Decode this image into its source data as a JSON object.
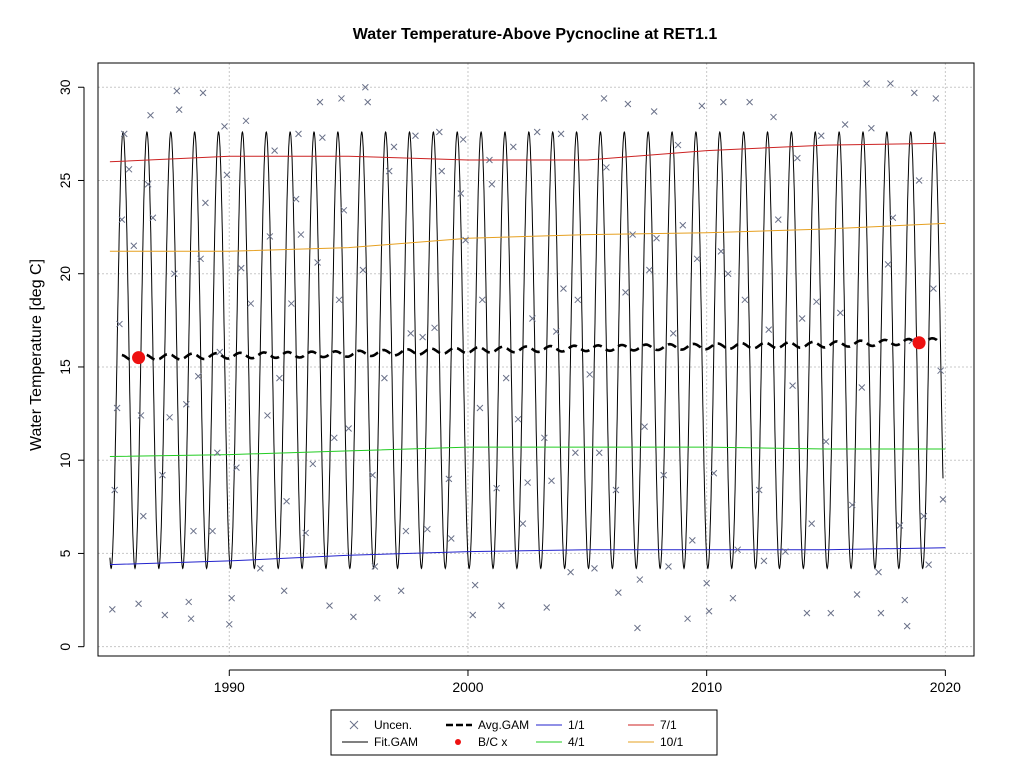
{
  "chart_data": {
    "type": "line",
    "title": "Water Temperature-Above Pycnocline at RET1.1",
    "xlabel": "",
    "ylabel": "Water Temperature [deg C]",
    "xlim": [
      1984.5,
      2021.2
    ],
    "ylim": [
      -0.5,
      31.3
    ],
    "x_ticks": [
      1990,
      2000,
      2010,
      2020
    ],
    "x_tick_labels": [
      "1990",
      "2000",
      "2010",
      "2020"
    ],
    "y_ticks": [
      0,
      5,
      10,
      15,
      20,
      25,
      30
    ],
    "y_tick_labels": [
      "0",
      "5",
      "10",
      "15",
      "20",
      "25",
      "30"
    ],
    "grid": true,
    "legend_position": "bottom-outside",
    "legend": [
      {
        "label": "Uncen.",
        "style": "x-marker",
        "color": "#6a7189"
      },
      {
        "label": "Fit.GAM",
        "style": "line",
        "color": "#000000"
      },
      {
        "label": "Avg.GAM",
        "style": "dashed-thick",
        "color": "#000000"
      },
      {
        "label": "B/C x",
        "style": "dot",
        "color": "#ee1111"
      },
      {
        "label": "1/1",
        "style": "line",
        "color": "#2222cc"
      },
      {
        "label": "4/1",
        "style": "line",
        "color": "#22cc22"
      },
      {
        "label": "7/1",
        "style": "line",
        "color": "#cc2222"
      },
      {
        "label": "10/1",
        "style": "line",
        "color": "#e6a020"
      }
    ],
    "series": [
      {
        "name": "1/1",
        "color": "#2222cc",
        "x": [
          1985,
          1990,
          1995,
          2000,
          2005,
          2010,
          2015,
          2020
        ],
        "values": [
          4.4,
          4.6,
          4.9,
          5.1,
          5.2,
          5.2,
          5.2,
          5.3
        ]
      },
      {
        "name": "4/1",
        "color": "#22cc22",
        "x": [
          1985,
          1990,
          1995,
          2000,
          2005,
          2010,
          2015,
          2020
        ],
        "values": [
          10.2,
          10.3,
          10.5,
          10.7,
          10.7,
          10.7,
          10.6,
          10.6
        ]
      },
      {
        "name": "7/1",
        "color": "#cc2222",
        "x": [
          1985,
          1990,
          1995,
          2000,
          2005,
          2010,
          2015,
          2020
        ],
        "values": [
          26.0,
          26.3,
          26.3,
          26.1,
          26.1,
          26.6,
          26.9,
          27.0
        ]
      },
      {
        "name": "10/1",
        "color": "#e6a020",
        "x": [
          1985,
          1990,
          1995,
          2000,
          2005,
          2010,
          2015,
          2020
        ],
        "values": [
          21.2,
          21.2,
          21.4,
          21.9,
          22.1,
          22.2,
          22.4,
          22.7
        ]
      },
      {
        "name": "Avg.GAM",
        "color": "#000000",
        "x": [
          1985.5,
          1990,
          1995,
          2000,
          2005,
          2010,
          2015,
          2019.8
        ],
        "values": [
          15.5,
          15.6,
          15.7,
          15.9,
          16.0,
          16.1,
          16.2,
          16.4
        ]
      },
      {
        "name": "B/C x",
        "color": "#ee1111",
        "x": [
          1986.2,
          2018.9
        ],
        "values": [
          15.5,
          16.3
        ]
      }
    ],
    "fit_gam": {
      "start": 1985.0,
      "end": 2019.9,
      "min": 4.2,
      "max": 27.6
    },
    "uncensored_points": [
      [
        1985.1,
        2.0
      ],
      [
        1985.2,
        8.4
      ],
      [
        1985.3,
        12.8
      ],
      [
        1985.4,
        17.3
      ],
      [
        1985.5,
        22.9
      ],
      [
        1985.6,
        27.5
      ],
      [
        1985.8,
        25.6
      ],
      [
        1986.0,
        21.5
      ],
      [
        1986.3,
        12.4
      ],
      [
        1986.4,
        7.0
      ],
      [
        1986.2,
        2.3
      ],
      [
        1986.6,
        24.8
      ],
      [
        1986.7,
        28.5
      ],
      [
        1986.8,
        23.0
      ],
      [
        1987.2,
        9.2
      ],
      [
        1987.3,
        1.7
      ],
      [
        1987.5,
        12.3
      ],
      [
        1987.7,
        20.0
      ],
      [
        1987.8,
        29.8
      ],
      [
        1987.9,
        28.8
      ],
      [
        1988.2,
        13.0
      ],
      [
        1988.3,
        2.4
      ],
      [
        1988.4,
        1.5
      ],
      [
        1988.5,
        6.2
      ],
      [
        1988.7,
        14.5
      ],
      [
        1988.8,
        20.8
      ],
      [
        1988.9,
        29.7
      ],
      [
        1989.0,
        23.8
      ],
      [
        1989.3,
        6.2
      ],
      [
        1989.5,
        10.4
      ],
      [
        1989.6,
        15.8
      ],
      [
        1989.8,
        27.9
      ],
      [
        1989.9,
        25.3
      ],
      [
        1990.0,
        1.2
      ],
      [
        1990.1,
        2.6
      ],
      [
        1990.3,
        9.6
      ],
      [
        1990.5,
        20.3
      ],
      [
        1990.7,
        28.2
      ],
      [
        1990.9,
        18.4
      ],
      [
        1991.3,
        4.2
      ],
      [
        1991.6,
        12.4
      ],
      [
        1991.7,
        22.0
      ],
      [
        1991.9,
        26.6
      ],
      [
        1992.1,
        14.4
      ],
      [
        1992.3,
        3.0
      ],
      [
        1992.4,
        7.8
      ],
      [
        1992.6,
        18.4
      ],
      [
        1992.8,
        24.0
      ],
      [
        1992.9,
        27.5
      ],
      [
        1993.0,
        22.1
      ],
      [
        1993.2,
        6.1
      ],
      [
        1993.5,
        9.8
      ],
      [
        1993.7,
        20.6
      ],
      [
        1993.8,
        29.2
      ],
      [
        1993.9,
        27.3
      ],
      [
        1994.2,
        2.2
      ],
      [
        1994.4,
        11.2
      ],
      [
        1994.6,
        18.6
      ],
      [
        1994.7,
        29.4
      ],
      [
        1994.8,
        23.4
      ],
      [
        1995.0,
        11.7
      ],
      [
        1995.2,
        1.6
      ],
      [
        1995.6,
        20.2
      ],
      [
        1995.7,
        30.0
      ],
      [
        1995.8,
        29.2
      ],
      [
        1996.0,
        9.2
      ],
      [
        1996.1,
        4.3
      ],
      [
        1996.2,
        2.6
      ],
      [
        1996.5,
        14.4
      ],
      [
        1996.7,
        25.5
      ],
      [
        1996.9,
        26.8
      ],
      [
        1997.2,
        3.0
      ],
      [
        1997.4,
        6.2
      ],
      [
        1997.6,
        16.8
      ],
      [
        1997.8,
        27.4
      ],
      [
        1998.1,
        16.6
      ],
      [
        1998.3,
        6.3
      ],
      [
        1998.6,
        17.1
      ],
      [
        1998.8,
        27.6
      ],
      [
        1998.9,
        25.5
      ],
      [
        1999.2,
        9.0
      ],
      [
        1999.3,
        5.8
      ],
      [
        1999.7,
        24.3
      ],
      [
        1999.8,
        27.2
      ],
      [
        1999.9,
        21.8
      ],
      [
        2000.2,
        1.7
      ],
      [
        2000.3,
        3.3
      ],
      [
        2000.5,
        12.8
      ],
      [
        2000.6,
        18.6
      ],
      [
        2000.9,
        26.1
      ],
      [
        2001.0,
        24.8
      ],
      [
        2001.2,
        8.5
      ],
      [
        2001.4,
        2.2
      ],
      [
        2001.6,
        14.4
      ],
      [
        2001.9,
        26.8
      ],
      [
        2002.1,
        12.2
      ],
      [
        2002.3,
        6.6
      ],
      [
        2002.5,
        8.8
      ],
      [
        2002.7,
        17.6
      ],
      [
        2002.9,
        27.6
      ],
      [
        2003.2,
        11.2
      ],
      [
        2003.3,
        2.1
      ],
      [
        2003.5,
        8.9
      ],
      [
        2003.7,
        16.9
      ],
      [
        2003.9,
        27.5
      ],
      [
        2004.0,
        19.2
      ],
      [
        2004.3,
        4.0
      ],
      [
        2004.5,
        10.4
      ],
      [
        2004.6,
        18.6
      ],
      [
        2004.9,
        28.4
      ],
      [
        2005.1,
        14.6
      ],
      [
        2005.3,
        4.2
      ],
      [
        2005.5,
        10.4
      ],
      [
        2005.7,
        29.4
      ],
      [
        2005.8,
        25.7
      ],
      [
        2006.2,
        8.4
      ],
      [
        2006.3,
        2.9
      ],
      [
        2006.6,
        19.0
      ],
      [
        2006.7,
        29.1
      ],
      [
        2006.9,
        22.1
      ],
      [
        2007.1,
        1.0
      ],
      [
        2007.2,
        3.6
      ],
      [
        2007.4,
        11.8
      ],
      [
        2007.6,
        20.2
      ],
      [
        2007.8,
        28.7
      ],
      [
        2007.9,
        21.9
      ],
      [
        2008.2,
        9.2
      ],
      [
        2008.4,
        4.3
      ],
      [
        2008.6,
        16.8
      ],
      [
        2008.8,
        26.9
      ],
      [
        2009.0,
        22.6
      ],
      [
        2009.2,
        1.5
      ],
      [
        2009.4,
        5.7
      ],
      [
        2009.6,
        20.8
      ],
      [
        2009.8,
        29.0
      ],
      [
        2010.0,
        3.4
      ],
      [
        2010.1,
        1.9
      ],
      [
        2010.3,
        9.3
      ],
      [
        2010.6,
        21.2
      ],
      [
        2010.7,
        29.2
      ],
      [
        2010.9,
        20.0
      ],
      [
        2011.1,
        2.6
      ],
      [
        2011.3,
        5.2
      ],
      [
        2011.6,
        18.6
      ],
      [
        2011.8,
        29.2
      ],
      [
        2012.2,
        8.4
      ],
      [
        2012.4,
        4.6
      ],
      [
        2012.6,
        17.0
      ],
      [
        2012.8,
        28.4
      ],
      [
        2013.0,
        22.9
      ],
      [
        2013.3,
        5.1
      ],
      [
        2013.6,
        14.0
      ],
      [
        2013.8,
        26.2
      ],
      [
        2014.0,
        17.6
      ],
      [
        2014.2,
        1.8
      ],
      [
        2014.4,
        6.6
      ],
      [
        2014.6,
        18.5
      ],
      [
        2014.8,
        27.4
      ],
      [
        2015.0,
        11.0
      ],
      [
        2015.2,
        1.8
      ],
      [
        2015.6,
        17.9
      ],
      [
        2015.8,
        28.0
      ],
      [
        2016.1,
        7.6
      ],
      [
        2016.3,
        2.8
      ],
      [
        2016.5,
        13.9
      ],
      [
        2016.7,
        30.2
      ],
      [
        2016.9,
        27.8
      ],
      [
        2017.2,
        4.0
      ],
      [
        2017.3,
        1.8
      ],
      [
        2017.6,
        20.5
      ],
      [
        2017.7,
        30.2
      ],
      [
        2017.8,
        23.0
      ],
      [
        2018.1,
        6.5
      ],
      [
        2018.3,
        2.5
      ],
      [
        2018.4,
        1.1
      ],
      [
        2018.6,
        16.4
      ],
      [
        2018.7,
        29.7
      ],
      [
        2018.9,
        25.0
      ],
      [
        2019.1,
        7.0
      ],
      [
        2019.3,
        4.4
      ],
      [
        2019.5,
        19.2
      ],
      [
        2019.6,
        29.4
      ],
      [
        2019.8,
        14.8
      ],
      [
        2019.9,
        7.9
      ]
    ]
  }
}
